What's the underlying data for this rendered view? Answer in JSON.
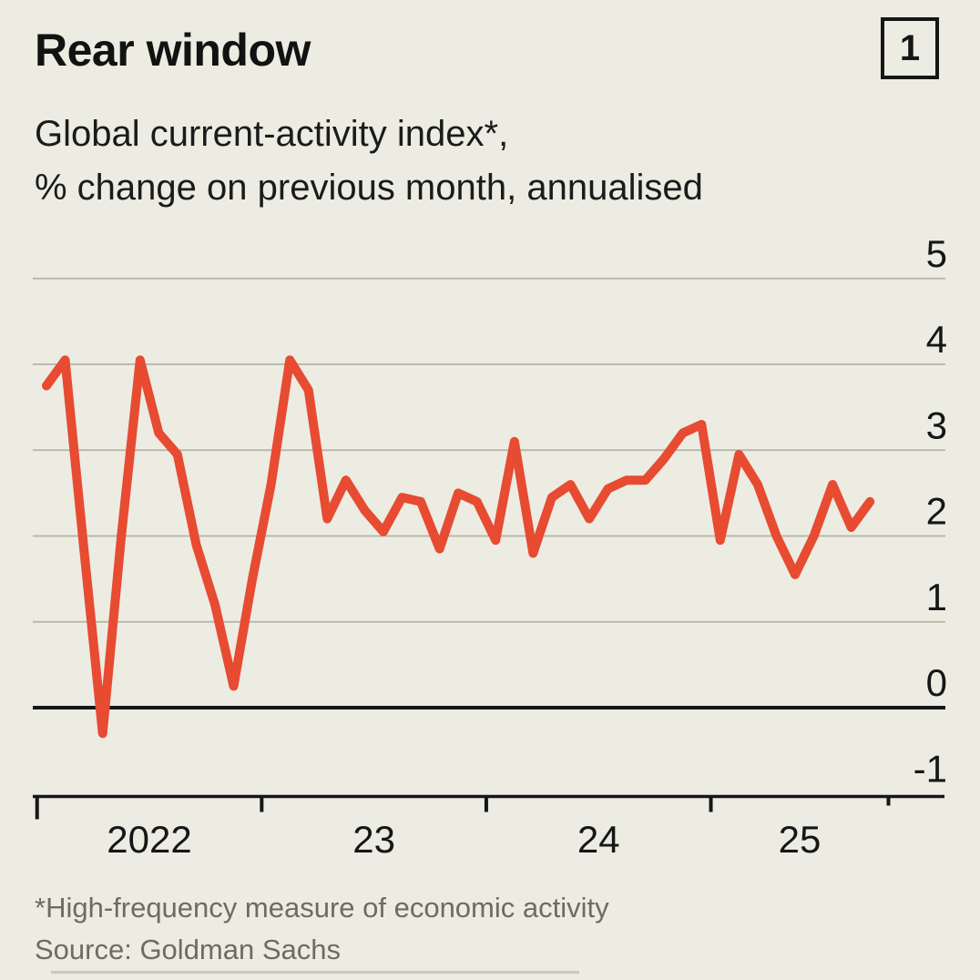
{
  "header": {
    "title": "Rear window",
    "figure_number": "1"
  },
  "subtitle": {
    "line1": "Global current-activity index*,",
    "line2": "% change on previous month, annualised"
  },
  "footer": {
    "footnote": "*High-frequency measure of economic activity",
    "source": "Source: Goldman Sachs"
  },
  "colors": {
    "background": "#edece2",
    "line": "#e74b32",
    "grid": "#b4b3a6",
    "zero_line": "#161616",
    "axis": "#161616",
    "text": "#161616",
    "muted_text": "#6c6c62"
  },
  "chart_data": {
    "type": "line",
    "title": "Rear window",
    "subtitle": "Global current-activity index*, % change on previous month, annualised",
    "source": "Goldman Sachs",
    "x": [
      "Jan 2022",
      "Feb 2022",
      "Mar 2022",
      "Apr 2022",
      "May 2022",
      "Jun 2022",
      "Jul 2022",
      "Aug 2022",
      "Sep 2022",
      "Oct 2022",
      "Nov 2022",
      "Dec 2022",
      "Jan 2023",
      "Feb 2023",
      "Mar 2023",
      "Apr 2023",
      "May 2023",
      "Jun 2023",
      "Jul 2023",
      "Aug 2023",
      "Sep 2023",
      "Oct 2023",
      "Nov 2023",
      "Dec 2023",
      "Jan 2024",
      "Feb 2024",
      "Mar 2024",
      "Apr 2024",
      "May 2024",
      "Jun 2024",
      "Jul 2024",
      "Aug 2024",
      "Sep 2024",
      "Oct 2024",
      "Nov 2024",
      "Dec 2024",
      "Jan 2025",
      "Feb 2025",
      "Mar 2025",
      "Apr 2025",
      "May 2025",
      "Jun 2025",
      "Jul 2025",
      "Aug 2025",
      "Sep 2025"
    ],
    "values": [
      3.75,
      4.05,
      1.85,
      -0.3,
      2.0,
      4.05,
      3.2,
      2.95,
      1.9,
      1.2,
      0.25,
      1.5,
      2.6,
      4.05,
      3.7,
      2.2,
      2.65,
      2.3,
      2.05,
      2.45,
      2.4,
      1.85,
      2.5,
      2.4,
      1.95,
      3.1,
      1.8,
      2.45,
      2.6,
      2.2,
      2.55,
      2.65,
      2.65,
      2.9,
      3.2,
      3.3,
      1.95,
      2.95,
      2.6,
      2.0,
      1.55,
      2.0,
      2.6,
      2.1,
      2.4
    ],
    "y_ticks": [
      5,
      4,
      3,
      2,
      1,
      0,
      -1
    ],
    "x_tick_labels": [
      "2022",
      "23",
      "24",
      "25"
    ],
    "ylim": [
      -1,
      5
    ],
    "grid": true,
    "legend": "none",
    "series_color": "#e74b32"
  }
}
